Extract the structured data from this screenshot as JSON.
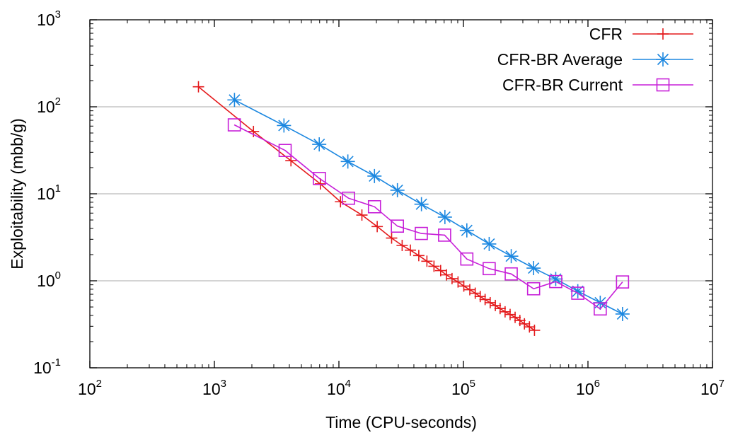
{
  "chart_data": {
    "type": "line",
    "title": "",
    "xlabel": "Time (CPU-seconds)",
    "ylabel": "Exploitability (mbb/g)",
    "x_scale": "log",
    "y_scale": "log",
    "xlim": [
      100,
      10000000
    ],
    "ylim": [
      0.1,
      1000
    ],
    "grid": "horizontal major gridlines",
    "legend_position": "top-right",
    "x_ticks": [
      {
        "base": "10",
        "exp": "2",
        "value": 100
      },
      {
        "base": "10",
        "exp": "3",
        "value": 1000
      },
      {
        "base": "10",
        "exp": "4",
        "value": 10000
      },
      {
        "base": "10",
        "exp": "5",
        "value": 100000
      },
      {
        "base": "10",
        "exp": "6",
        "value": 1000000
      },
      {
        "base": "10",
        "exp": "7",
        "value": 10000000
      }
    ],
    "y_ticks": [
      {
        "base": "10",
        "exp": "-1",
        "value": 0.1
      },
      {
        "base": "10",
        "exp": "0",
        "value": 1
      },
      {
        "base": "10",
        "exp": "1",
        "value": 10
      },
      {
        "base": "10",
        "exp": "2",
        "value": 100
      },
      {
        "base": "10",
        "exp": "3",
        "value": 1000
      }
    ],
    "series": [
      {
        "name": "CFR",
        "color": "#e41a1c",
        "marker": "plus",
        "x": [
          745,
          2060,
          4120,
          7100,
          10300,
          15300,
          20300,
          26500,
          32200,
          37500,
          43800,
          50900,
          58000,
          65600,
          73100,
          81000,
          90500,
          100700,
          112500,
          124400,
          136400,
          149300,
          164000,
          180400,
          197000,
          216000,
          237000,
          260000,
          284000,
          309000,
          339000,
          372000
        ],
        "y": [
          170,
          52,
          24,
          13,
          8.1,
          5.7,
          4.2,
          3.1,
          2.55,
          2.25,
          1.95,
          1.68,
          1.47,
          1.31,
          1.17,
          1.06,
          0.97,
          0.87,
          0.79,
          0.72,
          0.66,
          0.61,
          0.56,
          0.52,
          0.48,
          0.44,
          0.41,
          0.38,
          0.35,
          0.32,
          0.295,
          0.27
        ]
      },
      {
        "name": "CFR-BR Average",
        "color": "#1b87e0",
        "marker": "asterisk",
        "x": [
          1450,
          3620,
          6950,
          11800,
          19300,
          29500,
          46000,
          71000,
          106500,
          161000,
          242000,
          366000,
          551000,
          829000,
          1255000,
          1895000
        ],
        "y": [
          120,
          61,
          37,
          23.5,
          16,
          11,
          7.6,
          5.4,
          3.8,
          2.65,
          1.92,
          1.4,
          1.05,
          0.76,
          0.56,
          0.415
        ]
      },
      {
        "name": "CFR-BR Current",
        "color": "#c71fd8",
        "marker": "square",
        "x": [
          1445,
          3700,
          6970,
          11950,
          19300,
          29500,
          45900,
          70600,
          106500,
          161000,
          242000,
          366000,
          551000,
          829000,
          1255000,
          1895000
        ],
        "y": [
          62,
          31.5,
          15,
          8.9,
          7.1,
          4.25,
          3.5,
          3.35,
          1.78,
          1.38,
          1.2,
          0.81,
          0.98,
          0.72,
          0.475,
          0.97
        ]
      }
    ]
  }
}
